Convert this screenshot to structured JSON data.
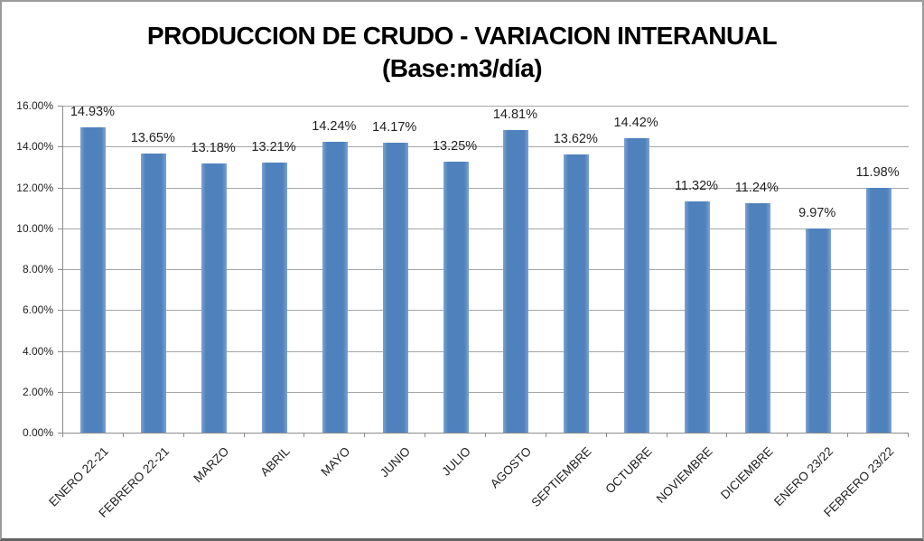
{
  "title": {
    "line1": "PRODUCCION DE CRUDO - VARIACION INTERANUAL",
    "line2": "(Base:m3/día)"
  },
  "chart_data": {
    "type": "bar",
    "title": "PRODUCCION DE CRUDO - VARIACION INTERANUAL (Base:m3/día)",
    "categories": [
      "ENERO 22-21",
      "FEBRERO 22-21",
      "MARZO",
      "ABRIL",
      "MAYO",
      "JUNIO",
      "JULIO",
      "AGOSTO",
      "SEPTIEMBRE",
      "OCTUBRE",
      "NOVIEMBRE",
      "DICIEMBRE",
      "ENERO 23/22",
      "FEBRERO 23/22"
    ],
    "values": [
      14.93,
      13.65,
      13.18,
      13.21,
      14.24,
      14.17,
      13.25,
      14.81,
      13.62,
      14.42,
      11.32,
      11.24,
      9.97,
      11.98
    ],
    "data_labels": [
      "14.93%",
      "13.65%",
      "13.18%",
      "13.21%",
      "14.24%",
      "14.17%",
      "13.25%",
      "14.81%",
      "13.62%",
      "14.42%",
      "11.32%",
      "11.24%",
      "9.97%",
      "11.98%"
    ],
    "y_tick_labels": [
      "0.00%",
      "2.00%",
      "4.00%",
      "6.00%",
      "8.00%",
      "10.00%",
      "12.00%",
      "14.00%",
      "16.00%"
    ],
    "ylim": [
      0,
      16
    ],
    "y_tick_step": 2,
    "xlabel": "",
    "ylabel": "",
    "grid": true,
    "legend": "none",
    "colors": {
      "bar": "#4F81BD",
      "bar_edge": "#7DA3D1",
      "gridline": "#A6A6A6",
      "axis": "#8C8C8C",
      "label_text": "#1F1F1F",
      "title_text": "#000000",
      "background": "#FFFFFF"
    }
  }
}
